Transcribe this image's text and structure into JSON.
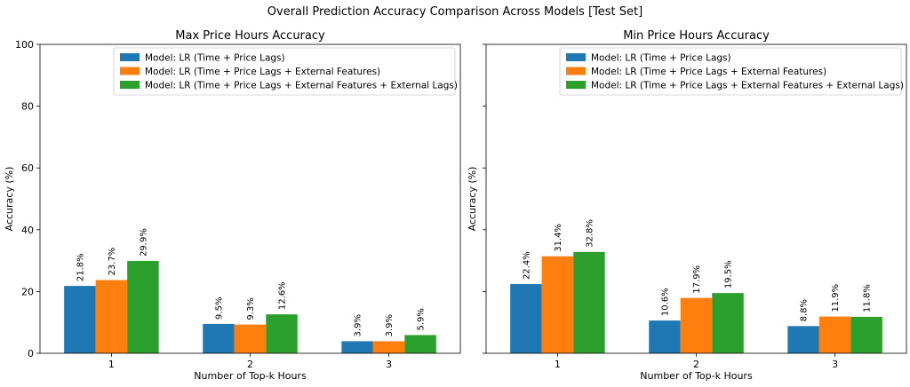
{
  "chart_data": {
    "suptitle": "Overall Prediction Accuracy Comparison Across Models  [Test Set]",
    "colors": [
      "#1f77b4",
      "#ff7f0e",
      "#2ca02c"
    ],
    "charts": [
      {
        "type": "bar",
        "title": "Max Price Hours Accuracy",
        "xlabel": "Number of Top-k Hours",
        "ylabel": "Accuracy (%)",
        "ylim": [
          0,
          100
        ],
        "yticks": [
          0,
          20,
          40,
          60,
          80,
          100
        ],
        "show_ytick_labels": true,
        "categories": [
          "1",
          "2",
          "3"
        ],
        "legend_position": "top-right",
        "series": [
          {
            "name": "Model: LR (Time + Price Lags)",
            "values": [
              21.8,
              9.5,
              3.9
            ]
          },
          {
            "name": "Model: LR (Time + Price Lags + External Features)",
            "values": [
              23.7,
              9.3,
              3.9
            ]
          },
          {
            "name": "Model: LR (Time + Price Lags + External Features + External Lags)",
            "values": [
              29.9,
              12.6,
              5.9
            ]
          }
        ]
      },
      {
        "type": "bar",
        "title": "Min Price Hours Accuracy",
        "xlabel": "Number of Top-k Hours",
        "ylabel": "Accuracy (%)",
        "ylim": [
          0,
          100
        ],
        "yticks": [
          0,
          20,
          40,
          60,
          80,
          100
        ],
        "show_ytick_labels": false,
        "categories": [
          "1",
          "2",
          "3"
        ],
        "legend_position": "top-right",
        "series": [
          {
            "name": "Model: LR (Time + Price Lags)",
            "values": [
              22.4,
              10.6,
              8.8
            ]
          },
          {
            "name": "Model: LR (Time + Price Lags + External Features)",
            "values": [
              31.4,
              17.9,
              11.9
            ]
          },
          {
            "name": "Model: LR (Time + Price Lags + External Features + External Lags)",
            "values": [
              32.8,
              19.5,
              11.8
            ]
          }
        ]
      }
    ]
  }
}
